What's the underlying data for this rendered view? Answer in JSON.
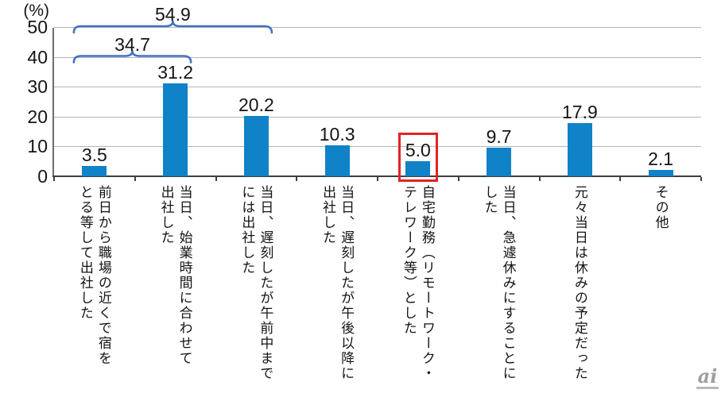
{
  "chart_data": {
    "type": "bar",
    "unit_label": "(%)",
    "categories": [
      "前日から職場の近くで宿をとる等して出社した",
      "当日、始業時間に合わせて出社した",
      "当日、遅刻したが午前中までには出社した",
      "当日、遅刻したが午後以降に出社した",
      "自宅勤務（リモートワーク・テレワーク等）とした",
      "当日、急遽休みにすることにした",
      "元々当日は休みの予定だった",
      "その他"
    ],
    "category_display": [
      "前日から職場の近くで宿を\nとる等して出社した",
      "当日、始業時間に合わせて\n出社した",
      "当日、遅刻したが午前中まで\nには出社した",
      "当日、遅刻したが午後以降に\n出社した",
      "自宅勤務（リモートワーク・\nテレワーク等）とした",
      "当日、急遽休みにすることに\nした",
      "元々当日は休みの予定だった",
      "その他"
    ],
    "values": [
      3.5,
      31.2,
      20.2,
      10.3,
      5.0,
      9.7,
      17.9,
      2.1
    ],
    "value_labels": [
      "3.5",
      "31.2",
      "20.2",
      "10.3",
      "5.0",
      "9.7",
      "17.9",
      "2.1"
    ],
    "ylim": [
      0,
      50
    ],
    "yticks": [
      0,
      10,
      20,
      30,
      40,
      50
    ],
    "grid": true,
    "legend": "none",
    "bar_color": "#0f82c8",
    "bracket_color": "#4472c4",
    "brackets": [
      {
        "label": "54.9",
        "from_index": 0,
        "to_index": 2,
        "at_level": 50
      },
      {
        "label": "34.7",
        "from_index": 0,
        "to_index": 1,
        "at_level": 40
      }
    ],
    "highlight": {
      "index": 4,
      "color": "#e02424"
    }
  },
  "watermark": {
    "text": "ai"
  }
}
